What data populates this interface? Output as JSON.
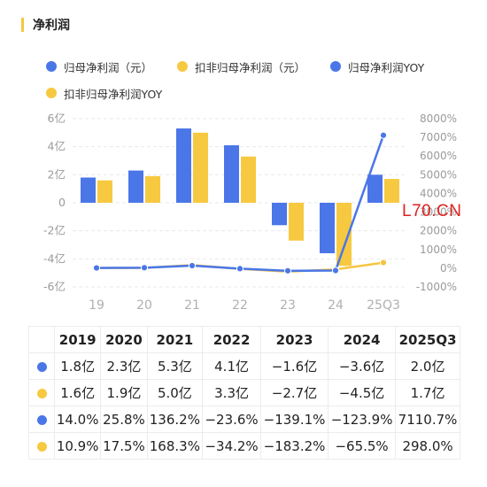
{
  "header": {
    "title": "净利润"
  },
  "colors": {
    "blue": "#4a76e8",
    "yellow": "#f7c940",
    "accent": "#f5c73c",
    "line_yellow": "#f5c542"
  },
  "legend": [
    {
      "label": "归母净利润（元）",
      "color": "#4a76e8"
    },
    {
      "label": "扣非归母净利润（元）",
      "color": "#f7c940"
    },
    {
      "label": "归母净利润YOY",
      "color": "#4a76e8"
    },
    {
      "label": "扣非归母净利润YOY",
      "color": "#f7c940"
    }
  ],
  "watermark": "L70.CN",
  "chart_data": {
    "type": "bar",
    "categories": [
      "19",
      "20",
      "21",
      "22",
      "23",
      "24",
      "25Q3"
    ],
    "y_left": {
      "ticks": [
        "6亿",
        "4亿",
        "2亿",
        "0",
        "-2亿",
        "-4亿",
        "-6亿"
      ],
      "range": [
        -6,
        6
      ],
      "unit": "亿"
    },
    "y_right": {
      "ticks": [
        "8000%",
        "7000%",
        "6000%",
        "5000%",
        "4000%",
        "3000%",
        "2000%",
        "1000%",
        "0%",
        "-1000%"
      ],
      "range": [
        -1000,
        8000
      ]
    },
    "series": [
      {
        "name": "归母净利润（元）",
        "kind": "bar",
        "axis": "left",
        "color": "#4a76e8",
        "values": [
          1.8,
          2.3,
          5.3,
          4.1,
          -1.6,
          -3.6,
          2.0
        ]
      },
      {
        "name": "扣非归母净利润（元）",
        "kind": "bar",
        "axis": "left",
        "color": "#f7c940",
        "values": [
          1.6,
          1.9,
          5.0,
          3.3,
          -2.7,
          -4.5,
          1.7
        ]
      },
      {
        "name": "归母净利润YOY",
        "kind": "line",
        "axis": "right",
        "color": "#4a76e8",
        "values": [
          14.0,
          25.8,
          136.2,
          -23.6,
          -139.1,
          -123.9,
          7110.7
        ]
      },
      {
        "name": "扣非归母净利润YOY",
        "kind": "line",
        "axis": "right",
        "color": "#f5c542",
        "values": [
          10.9,
          17.5,
          168.3,
          -34.2,
          -183.2,
          -65.5,
          298.0
        ]
      }
    ],
    "grid": true
  },
  "table": {
    "headers": [
      "2019",
      "2020",
      "2021",
      "2022",
      "2023",
      "2024",
      "2025Q3"
    ],
    "rows": [
      {
        "color": "#4a76e8",
        "cells": [
          "1.8亿",
          "2.3亿",
          "5.3亿",
          "4.1亿",
          "−1.6亿",
          "−3.6亿",
          "2.0亿"
        ]
      },
      {
        "color": "#f7c940",
        "cells": [
          "1.6亿",
          "1.9亿",
          "5.0亿",
          "3.3亿",
          "−2.7亿",
          "−4.5亿",
          "1.7亿"
        ]
      },
      {
        "color": "#4a76e8",
        "cells": [
          "14.0%",
          "25.8%",
          "136.2%",
          "−23.6%",
          "−139.1%",
          "−123.9%",
          "7110.7%"
        ]
      },
      {
        "color": "#f7c940",
        "cells": [
          "10.9%",
          "17.5%",
          "168.3%",
          "−34.2%",
          "−183.2%",
          "−65.5%",
          "298.0%"
        ]
      }
    ]
  }
}
